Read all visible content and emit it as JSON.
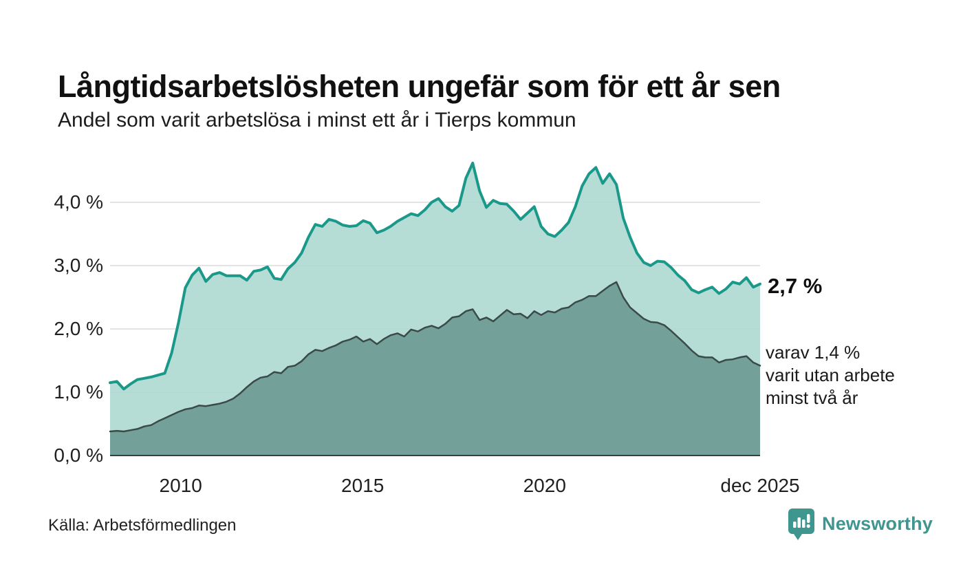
{
  "header": {
    "title": "Långtidsarbetslösheten ungefär som för ett år sen",
    "subtitle": "Andel som varit arbetslösa i minst ett år i Tierps kommun"
  },
  "annotations": {
    "latest_total": "2,7 %",
    "secondary_lines": [
      "varav 1,4 %",
      "varit utan arbete",
      "minst två år"
    ]
  },
  "footer": {
    "source": "Källa: Arbetsförmedlingen",
    "brand": "Newsworthy",
    "brand_icon": "newsworthy-pin-barchart-icon"
  },
  "colors": {
    "total_line": "#1a998a",
    "total_fill": "#aed8d1",
    "two_year_line": "#3a4a47",
    "two_year_fill": "#719c97",
    "gridline": "#e4e4e4",
    "baseline": "#3c3c3c",
    "text": "#1a1a1a",
    "brand_teal": "#3e968e"
  },
  "chart_data": {
    "type": "area",
    "title": "Långtidsarbetslösheten ungefär som för ett år sen",
    "subtitle": "Andel som varit arbetslösa i minst ett år i Tierps kommun",
    "unit": "%",
    "grid": true,
    "legend": "none",
    "x_domain": [
      2008.06,
      2025.92
    ],
    "ylim": [
      0,
      4.8
    ],
    "x_ticks": [
      {
        "label": "2010",
        "year": 2010
      },
      {
        "label": "2015",
        "year": 2015
      },
      {
        "label": "2020",
        "year": 2020
      },
      {
        "label": "dec 2025",
        "year": 2025.92
      }
    ],
    "y_ticks": [
      {
        "label": "0,0 %",
        "value": 0
      },
      {
        "label": "1,0 %",
        "value": 1
      },
      {
        "label": "2,0 %",
        "value": 2
      },
      {
        "label": "3,0 %",
        "value": 3
      },
      {
        "label": "4,0 %",
        "value": 4
      }
    ],
    "series": [
      {
        "name": "Arbetslösa minst ett år",
        "latest_value_label": "2,7 %",
        "latest_value": 2.7,
        "values": [
          1.15,
          1.17,
          1.05,
          1.13,
          1.2,
          1.22,
          1.24,
          1.27,
          1.3,
          1.62,
          2.1,
          2.65,
          2.85,
          2.96,
          2.75,
          2.86,
          2.89,
          2.84,
          2.84,
          2.84,
          2.77,
          2.91,
          2.93,
          2.98,
          2.8,
          2.78,
          2.95,
          3.05,
          3.2,
          3.45,
          3.65,
          3.62,
          3.73,
          3.7,
          3.64,
          3.62,
          3.63,
          3.71,
          3.67,
          3.52,
          3.56,
          3.62,
          3.7,
          3.76,
          3.82,
          3.79,
          3.88,
          4.0,
          4.06,
          3.93,
          3.86,
          3.95,
          4.38,
          4.62,
          4.18,
          3.92,
          4.03,
          3.98,
          3.97,
          3.86,
          3.73,
          3.83,
          3.93,
          3.62,
          3.5,
          3.46,
          3.56,
          3.68,
          3.93,
          4.26,
          4.45,
          4.55,
          4.3,
          4.45,
          4.28,
          3.75,
          3.45,
          3.2,
          3.05,
          3.0,
          3.07,
          3.06,
          2.97,
          2.85,
          2.76,
          2.62,
          2.57,
          2.62,
          2.66,
          2.56,
          2.63,
          2.74,
          2.71,
          2.81,
          2.66,
          2.71
        ]
      },
      {
        "name": "varav arbetslösa minst två år",
        "latest_value_label": "varav 1,4 % varit utan arbete minst två år",
        "latest_value": 1.4,
        "values": [
          0.38,
          0.39,
          0.38,
          0.4,
          0.42,
          0.46,
          0.48,
          0.54,
          0.59,
          0.64,
          0.69,
          0.73,
          0.75,
          0.79,
          0.78,
          0.8,
          0.82,
          0.85,
          0.9,
          0.98,
          1.08,
          1.17,
          1.23,
          1.25,
          1.32,
          1.3,
          1.4,
          1.42,
          1.49,
          1.6,
          1.67,
          1.65,
          1.7,
          1.74,
          1.8,
          1.83,
          1.88,
          1.8,
          1.84,
          1.76,
          1.84,
          1.9,
          1.93,
          1.88,
          1.99,
          1.96,
          2.02,
          2.05,
          2.01,
          2.08,
          2.18,
          2.2,
          2.28,
          2.31,
          2.14,
          2.18,
          2.12,
          2.21,
          2.3,
          2.23,
          2.24,
          2.17,
          2.28,
          2.22,
          2.28,
          2.26,
          2.32,
          2.34,
          2.42,
          2.46,
          2.52,
          2.52,
          2.6,
          2.68,
          2.74,
          2.5,
          2.34,
          2.25,
          2.16,
          2.11,
          2.1,
          2.06,
          1.97,
          1.87,
          1.77,
          1.66,
          1.57,
          1.55,
          1.55,
          1.47,
          1.51,
          1.52,
          1.55,
          1.57,
          1.47,
          1.42
        ]
      }
    ]
  }
}
